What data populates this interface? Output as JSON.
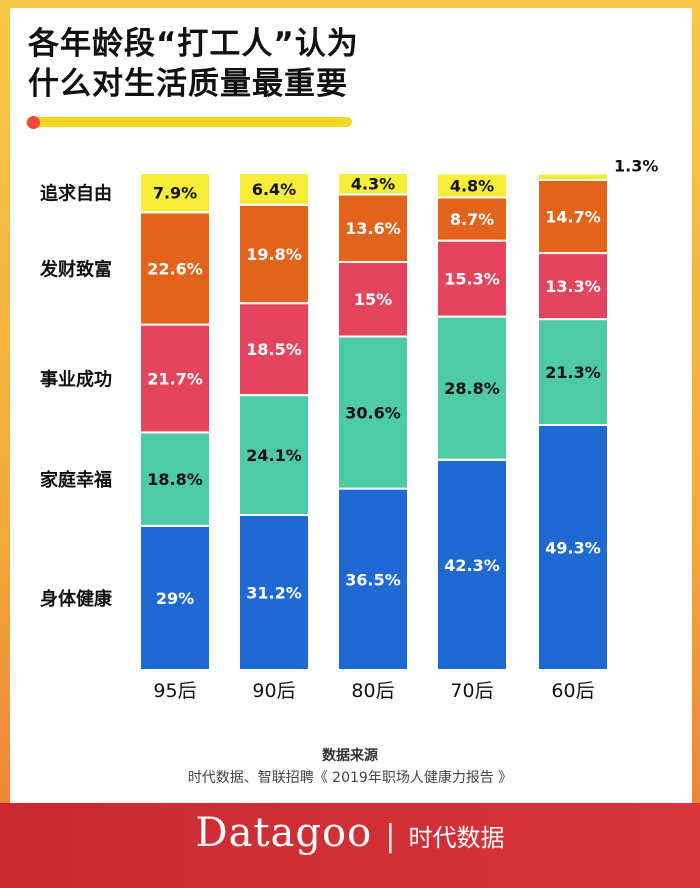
{
  "title_lines": [
    "各年龄段“打工人”认为",
    "什么对生活质量最重要"
  ],
  "chart_data": {
    "type": "stacked-bar",
    "categories": [
      "95后",
      "90后",
      "80后",
      "70后",
      "60后"
    ],
    "series": [
      {
        "name": "身体健康",
        "color": "#1f6ad2",
        "labels": [
          "29%",
          "31.2%",
          "36.5%",
          "42.3%",
          "49.3%"
        ],
        "values": [
          29,
          31.2,
          36.5,
          42.3,
          49.3
        ]
      },
      {
        "name": "家庭幸福",
        "color": "#4ecaa5",
        "labels": [
          "18.8%",
          "24.1%",
          "30.6%",
          "28.8%",
          "21.3%"
        ],
        "values": [
          18.8,
          24.1,
          30.6,
          28.8,
          21.3
        ]
      },
      {
        "name": "事业成功",
        "color": "#e3445e",
        "labels": [
          "21.7%",
          "18.5%",
          "15%",
          "15.3%",
          "13.3%"
        ],
        "values": [
          21.7,
          18.5,
          15,
          15.3,
          13.3
        ]
      },
      {
        "name": "发财致富",
        "color": "#e2641c",
        "labels": [
          "22.6%",
          "19.8%",
          "13.6%",
          "8.7%",
          "14.7%"
        ],
        "values": [
          22.6,
          19.8,
          13.6,
          8.7,
          14.7
        ]
      },
      {
        "name": "追求自由",
        "color": "#f6ec3a",
        "labels": [
          "7.9%",
          "6.4%",
          "4.3%",
          "4.8%",
          "1.3%"
        ],
        "values": [
          7.9,
          6.4,
          4.3,
          4.8,
          1.3
        ]
      }
    ],
    "ylim": [
      0,
      100
    ]
  },
  "source": {
    "title": "数据来源",
    "text": "时代数据、智联招聘《 2019年职场人健康力报告 》"
  },
  "brand": {
    "logo": "Datagoo",
    "separator": "|",
    "name": "时代数据"
  }
}
